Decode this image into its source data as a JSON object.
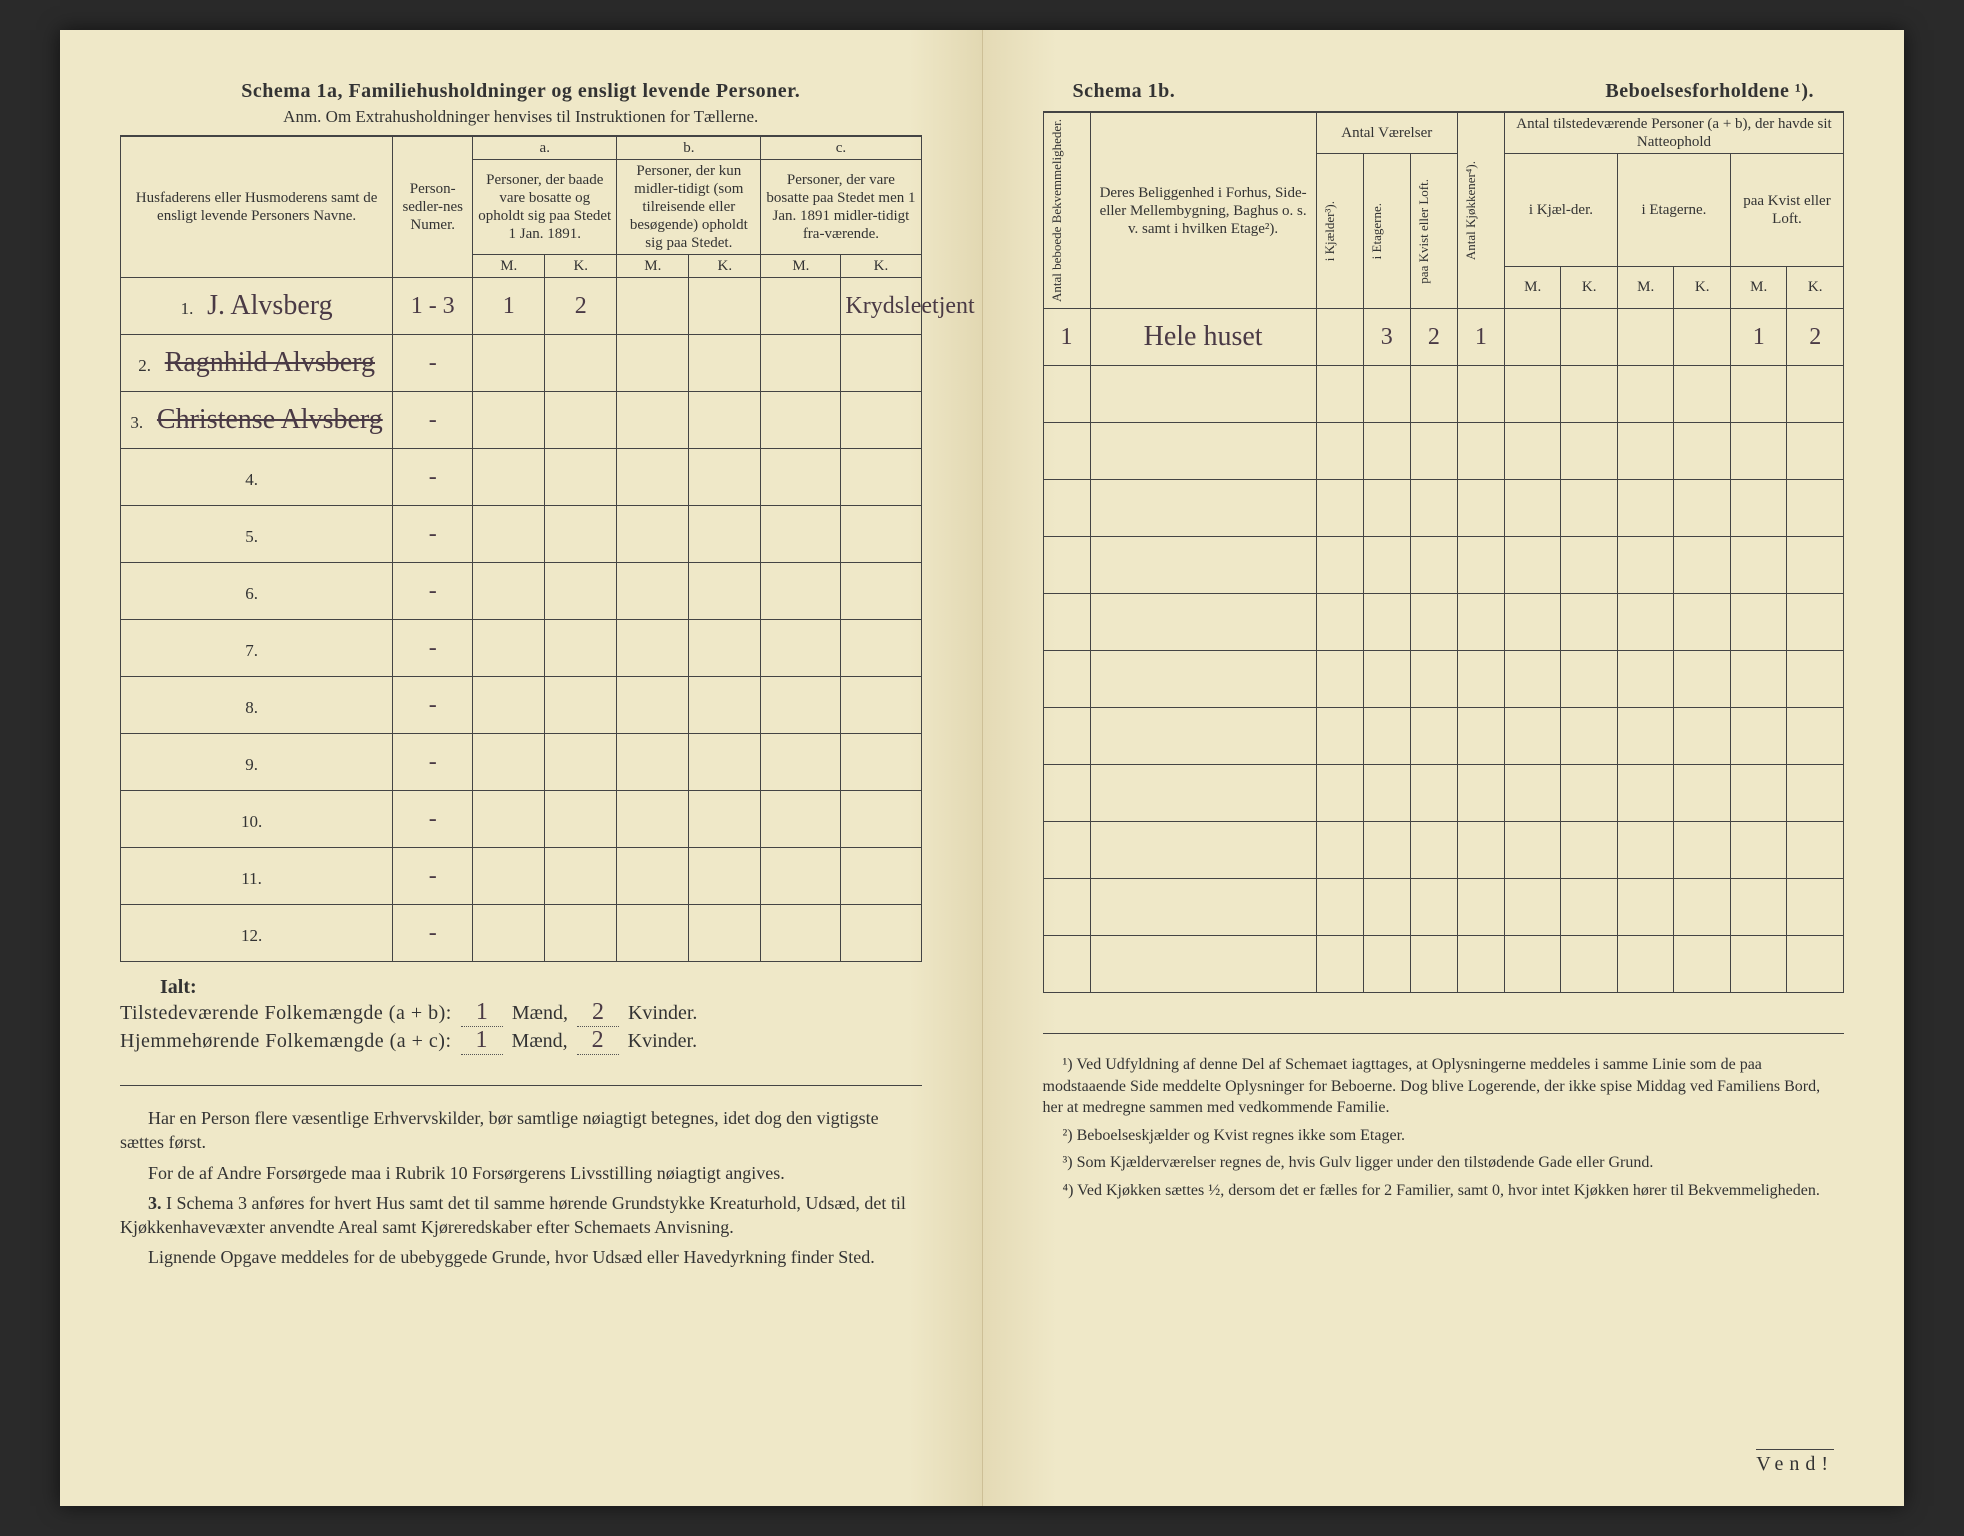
{
  "colors": {
    "paper": "#efe8c8",
    "ink": "#333333",
    "handwriting": "#4a3a45",
    "rule": "#444444",
    "background": "#2a2a2a"
  },
  "left": {
    "title_a": "Schema 1a,",
    "title_b": "Familiehusholdninger og ensligt levende Personer.",
    "subtitle": "Anm. Om Extrahusholdninger henvises til Instruktionen for Tællerne.",
    "head_names": "Husfaderens eller Husmoderens samt de ensligt levende Personers Navne.",
    "head_num": "Person-sedler-nes Numer.",
    "head_a_top": "a.",
    "head_a": "Personer, der baade vare bosatte og opholdt sig paa Stedet 1 Jan. 1891.",
    "head_b_top": "b.",
    "head_b": "Personer, der kun midler-tidigt (som tilreisende eller besøgende) opholdt sig paa Stedet.",
    "head_c_top": "c.",
    "head_c": "Personer, der vare bosatte paa Stedet men 1 Jan. 1891 midler-tidigt fra-værende.",
    "mk_m": "M.",
    "mk_k": "K.",
    "rows": [
      {
        "n": "1.",
        "name": "J. Alvsberg",
        "num": "1 - 3",
        "aM": "1",
        "aK": "2",
        "bM": "",
        "bK": "",
        "cM": "",
        "cK": "",
        "note": "Krydsleetjent",
        "struck": false
      },
      {
        "n": "2.",
        "name": "Ragnhild Alvsberg",
        "num": "-",
        "aM": "",
        "aK": "",
        "bM": "",
        "bK": "",
        "cM": "",
        "cK": "",
        "note": "",
        "struck": true
      },
      {
        "n": "3.",
        "name": "Christense Alvsberg",
        "num": "-",
        "aM": "",
        "aK": "",
        "bM": "",
        "bK": "",
        "cM": "",
        "cK": "",
        "note": "",
        "struck": true
      },
      {
        "n": "4.",
        "name": "",
        "num": "-",
        "aM": "",
        "aK": "",
        "bM": "",
        "bK": "",
        "cM": "",
        "cK": "",
        "note": "",
        "struck": false
      },
      {
        "n": "5.",
        "name": "",
        "num": "-",
        "aM": "",
        "aK": "",
        "bM": "",
        "bK": "",
        "cM": "",
        "cK": "",
        "note": "",
        "struck": false
      },
      {
        "n": "6.",
        "name": "",
        "num": "-",
        "aM": "",
        "aK": "",
        "bM": "",
        "bK": "",
        "cM": "",
        "cK": "",
        "note": "",
        "struck": false
      },
      {
        "n": "7.",
        "name": "",
        "num": "-",
        "aM": "",
        "aK": "",
        "bM": "",
        "bK": "",
        "cM": "",
        "cK": "",
        "note": "",
        "struck": false
      },
      {
        "n": "8.",
        "name": "",
        "num": "-",
        "aM": "",
        "aK": "",
        "bM": "",
        "bK": "",
        "cM": "",
        "cK": "",
        "note": "",
        "struck": false
      },
      {
        "n": "9.",
        "name": "",
        "num": "-",
        "aM": "",
        "aK": "",
        "bM": "",
        "bK": "",
        "cM": "",
        "cK": "",
        "note": "",
        "struck": false
      },
      {
        "n": "10.",
        "name": "",
        "num": "-",
        "aM": "",
        "aK": "",
        "bM": "",
        "bK": "",
        "cM": "",
        "cK": "",
        "note": "",
        "struck": false
      },
      {
        "n": "11.",
        "name": "",
        "num": "-",
        "aM": "",
        "aK": "",
        "bM": "",
        "bK": "",
        "cM": "",
        "cK": "",
        "note": "",
        "struck": false
      },
      {
        "n": "12.",
        "name": "",
        "num": "-",
        "aM": "",
        "aK": "",
        "bM": "",
        "bK": "",
        "cM": "",
        "cK": "",
        "note": "",
        "struck": false
      }
    ],
    "ialt": "Ialt:",
    "tot1_lbl": "Tilstedeværende Folkemængde (a + b):",
    "tot1_m": "1",
    "tot1_mw": "Mænd,",
    "tot1_k": "2",
    "tot1_kw": "Kvinder.",
    "tot2_lbl": "Hjemmehørende Folkemængde (a + c):",
    "tot2_m": "1",
    "tot2_k": "2",
    "notes_p1": "Har en Person flere væsentlige Erhvervskilder, bør samtlige nøiagtigt betegnes, idet dog den vigtigste sættes først.",
    "notes_p2": "For de af Andre Forsørgede maa i Rubrik 10 Forsørgerens Livsstilling nøiagtigt angives.",
    "notes_p3_n": "3.",
    "notes_p3": "I Schema 3 anføres for hvert Hus samt det til samme hørende Grundstykke Kreaturhold, Udsæd, det til Kjøkkenhavevæxter anvendte Areal samt Kjøreredskaber efter Schemaets Anvisning.",
    "notes_p4": "Lignende Opgave meddeles for de ubebyggede Grunde, hvor Udsæd eller Havedyrkning finder Sted."
  },
  "right": {
    "title_a": "Schema 1b.",
    "title_b": "Beboelsesforholdene ¹).",
    "head_bekv": "Antal beboede Bekvemmeligheder.",
    "head_belig": "Deres Beliggenhed i Forhus, Side- eller Mellembygning, Baghus o. s. v. samt i hvilken Etage²).",
    "head_vaer": "Antal Værelser",
    "head_kjael": "i Kjælder³).",
    "head_etag": "i Etagerne.",
    "head_kvist": "paa Kvist eller Loft.",
    "head_kjok": "Antal Kjøkkener⁴).",
    "head_pers": "Antal tilstedeværende Personer (a + b), der havde sit Natteophold",
    "head_p_kj": "i Kjæl-der.",
    "head_p_et": "i Etagerne.",
    "head_p_kv": "paa Kvist eller Loft.",
    "mk_m": "M.",
    "mk_k": "K.",
    "rows": [
      {
        "n": "1",
        "belig": "Hele huset",
        "vkj": "",
        "vet": "3",
        "vkv": "2",
        "kjok": "1",
        "pM1": "",
        "pK1": "",
        "pM2": "",
        "pK2": "",
        "pM3": "1",
        "pK3": "2"
      },
      {
        "n": "",
        "belig": "",
        "vkj": "",
        "vet": "",
        "vkv": "",
        "kjok": "",
        "pM1": "",
        "pK1": "",
        "pM2": "",
        "pK2": "",
        "pM3": "",
        "pK3": ""
      },
      {
        "n": "",
        "belig": "",
        "vkj": "",
        "vet": "",
        "vkv": "",
        "kjok": "",
        "pM1": "",
        "pK1": "",
        "pM2": "",
        "pK2": "",
        "pM3": "",
        "pK3": ""
      },
      {
        "n": "",
        "belig": "",
        "vkj": "",
        "vet": "",
        "vkv": "",
        "kjok": "",
        "pM1": "",
        "pK1": "",
        "pM2": "",
        "pK2": "",
        "pM3": "",
        "pK3": ""
      },
      {
        "n": "",
        "belig": "",
        "vkj": "",
        "vet": "",
        "vkv": "",
        "kjok": "",
        "pM1": "",
        "pK1": "",
        "pM2": "",
        "pK2": "",
        "pM3": "",
        "pK3": ""
      },
      {
        "n": "",
        "belig": "",
        "vkj": "",
        "vet": "",
        "vkv": "",
        "kjok": "",
        "pM1": "",
        "pK1": "",
        "pM2": "",
        "pK2": "",
        "pM3": "",
        "pK3": ""
      },
      {
        "n": "",
        "belig": "",
        "vkj": "",
        "vet": "",
        "vkv": "",
        "kjok": "",
        "pM1": "",
        "pK1": "",
        "pM2": "",
        "pK2": "",
        "pM3": "",
        "pK3": ""
      },
      {
        "n": "",
        "belig": "",
        "vkj": "",
        "vet": "",
        "vkv": "",
        "kjok": "",
        "pM1": "",
        "pK1": "",
        "pM2": "",
        "pK2": "",
        "pM3": "",
        "pK3": ""
      },
      {
        "n": "",
        "belig": "",
        "vkj": "",
        "vet": "",
        "vkv": "",
        "kjok": "",
        "pM1": "",
        "pK1": "",
        "pM2": "",
        "pK2": "",
        "pM3": "",
        "pK3": ""
      },
      {
        "n": "",
        "belig": "",
        "vkj": "",
        "vet": "",
        "vkv": "",
        "kjok": "",
        "pM1": "",
        "pK1": "",
        "pM2": "",
        "pK2": "",
        "pM3": "",
        "pK3": ""
      },
      {
        "n": "",
        "belig": "",
        "vkj": "",
        "vet": "",
        "vkv": "",
        "kjok": "",
        "pM1": "",
        "pK1": "",
        "pM2": "",
        "pK2": "",
        "pM3": "",
        "pK3": ""
      },
      {
        "n": "",
        "belig": "",
        "vkj": "",
        "vet": "",
        "vkv": "",
        "kjok": "",
        "pM1": "",
        "pK1": "",
        "pM2": "",
        "pK2": "",
        "pM3": "",
        "pK3": ""
      }
    ],
    "fn1": "¹) Ved Udfyldning af denne Del af Schemaet iagttages, at Oplysningerne meddeles i samme Linie som de paa modstaaende Side meddelte Oplysninger for Beboerne. Dog blive Logerende, der ikke spise Middag ved Familiens Bord, her at medregne sammen med vedkommende Familie.",
    "fn2": "²) Beboelseskjælder og Kvist regnes ikke som Etager.",
    "fn3": "³) Som Kjælderværelser regnes de, hvis Gulv ligger under den tilstødende Gade eller Grund.",
    "fn4": "⁴) Ved Kjøkken sættes ½, dersom det er fælles for 2 Familier, samt 0, hvor intet Kjøkken hører til Bekvemmeligheden.",
    "vend": "Vend!"
  }
}
